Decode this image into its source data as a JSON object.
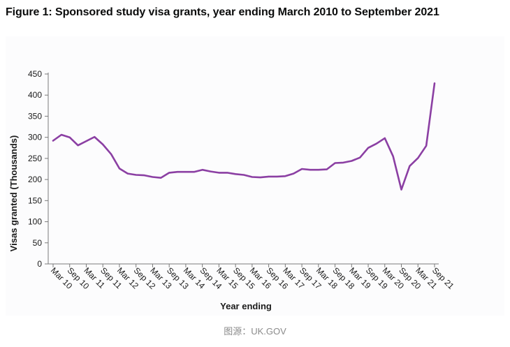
{
  "figure": {
    "title": "Figure 1: Sponsored study visa grants, year ending March 2010 to September 2021",
    "source": "图源：UK.GOV"
  },
  "chart_data": {
    "type": "line",
    "xlabel": "Year ending",
    "ylabel": "Visas granted (Thousands)",
    "ylim": [
      0,
      450
    ],
    "yticks": [
      0,
      50,
      100,
      150,
      200,
      250,
      300,
      350,
      400,
      450
    ],
    "categories": [
      "Mar 10",
      "Sep 10",
      "Mar 11",
      "Sep 11",
      "Mar 12",
      "Sep 12",
      "Mar 13",
      "Sep 13",
      "Mar 14",
      "Sep 14",
      "Mar 15",
      "Sep 15",
      "Mar 16",
      "Sep 16",
      "Mar 17",
      "Sep 17",
      "Mar 18",
      "Sep 18",
      "Mar 19",
      "Sep 19",
      "Mar 20",
      "Sep 20",
      "Mar 21",
      "Sep 21"
    ],
    "x": [
      "Mar 10",
      "Jun 10",
      "Sep 10",
      "Dec 10",
      "Mar 11",
      "Jun 11",
      "Sep 11",
      "Dec 11",
      "Mar 12",
      "Jun 12",
      "Sep 12",
      "Dec 12",
      "Mar 13",
      "Jun 13",
      "Sep 13",
      "Dec 13",
      "Mar 14",
      "Jun 14",
      "Sep 14",
      "Dec 14",
      "Mar 15",
      "Jun 15",
      "Sep 15",
      "Dec 15",
      "Mar 16",
      "Jun 16",
      "Sep 16",
      "Dec 16",
      "Mar 17",
      "Jun 17",
      "Sep 17",
      "Dec 17",
      "Mar 18",
      "Jun 18",
      "Sep 18",
      "Dec 18",
      "Mar 19",
      "Jun 19",
      "Sep 19",
      "Dec 19",
      "Mar 20",
      "Jun 20",
      "Sep 20",
      "Dec 20",
      "Mar 21",
      "Jun 21",
      "Sep 21"
    ],
    "series": [
      {
        "values": [
          292,
          306,
          300,
          281,
          291,
          301,
          283,
          260,
          226,
          214,
          211,
          210,
          206,
          204,
          216,
          218,
          218,
          218,
          223,
          219,
          216,
          216,
          213,
          211,
          206,
          205,
          207,
          207,
          208,
          214,
          225,
          223,
          223,
          224,
          239,
          240,
          244,
          252,
          275,
          285,
          298,
          255,
          176,
          232,
          251,
          280,
          428
        ]
      }
    ],
    "line_color": "#8b3fa3",
    "grid": false,
    "legend": "none"
  }
}
